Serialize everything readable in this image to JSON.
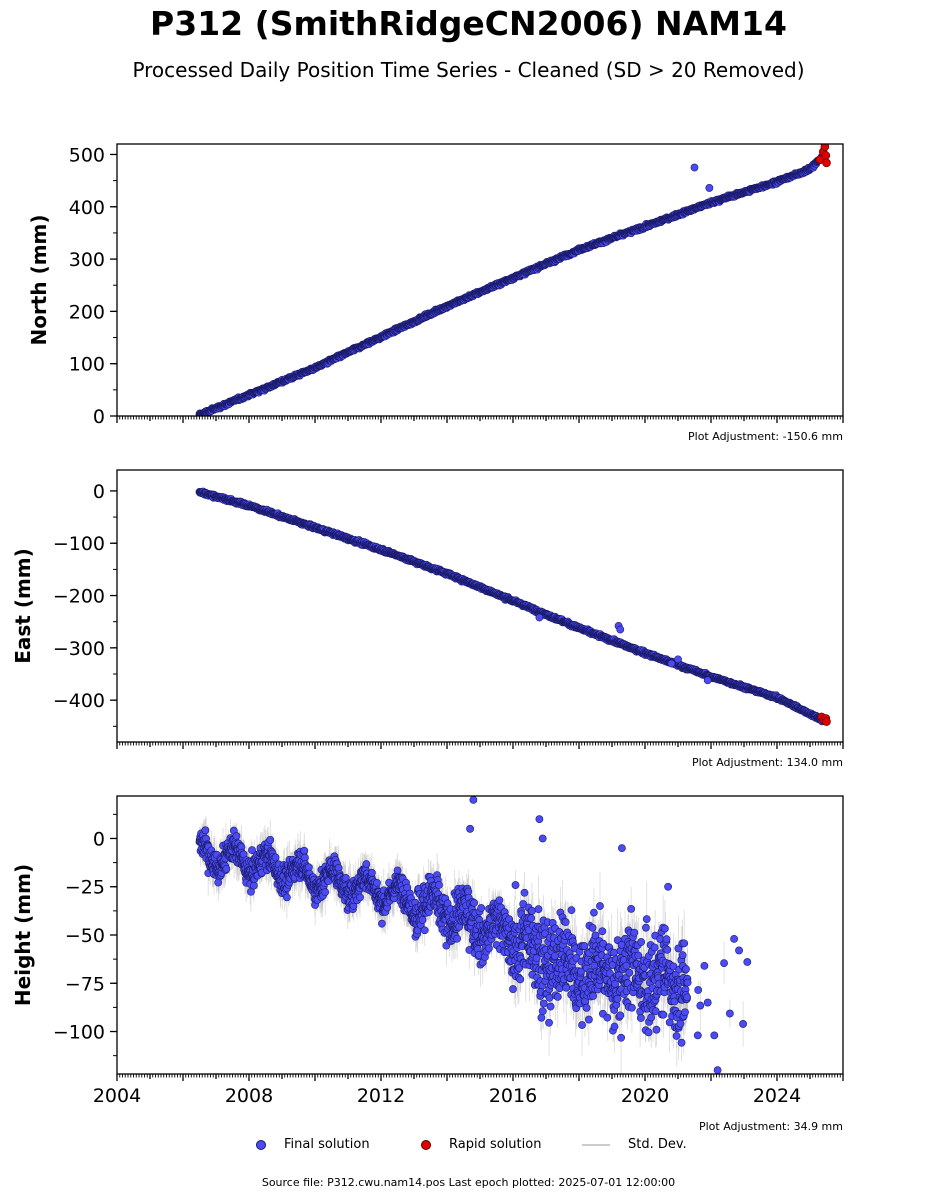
{
  "header": {
    "title": "P312 (SmithRidgeCN2006) NAM14",
    "subtitle": "Processed Daily Position Time Series - Cleaned (SD > 20 Removed)"
  },
  "legend": {
    "final": "Final solution",
    "rapid": "Rapid solution",
    "std": "Std. Dev."
  },
  "footer": {
    "source": "Source file: P312.cwu.nam14.pos  Last epoch plotted: 2025-07-01 12:00:00"
  },
  "colors": {
    "final": "#4b4bf5",
    "final_edge": "#1a1a66",
    "rapid": "#e00000",
    "std": "#bbbbbb"
  },
  "chart_data": [
    {
      "type": "scatter",
      "ylabel": "North (mm)",
      "adjustment": "Plot Adjustment: -150.6 mm",
      "xlim": [
        2004,
        2026
      ],
      "ylim": [
        0,
        520
      ],
      "yticks": [
        0,
        100,
        200,
        300,
        400,
        500
      ],
      "show_x_tick_labels": false,
      "trend": [
        [
          2006.5,
          2
        ],
        [
          2010,
          92
        ],
        [
          2014,
          210
        ],
        [
          2018,
          318
        ],
        [
          2020,
          362
        ],
        [
          2022,
          408
        ],
        [
          2024,
          448
        ],
        [
          2025.0,
          472
        ],
        [
          2025.45,
          500
        ]
      ],
      "outliers": [
        [
          2021.5,
          475
        ],
        [
          2021.95,
          436
        ]
      ],
      "rapid": [
        [
          2025.3,
          490
        ],
        [
          2025.4,
          505
        ],
        [
          2025.45,
          515
        ],
        [
          2025.48,
          498
        ],
        [
          2025.5,
          484
        ]
      ],
      "series": [
        {
          "name": "Final solution",
          "x_start": 2006.5,
          "x_end": 2025.4
        },
        {
          "name": "Rapid solution",
          "x_start": 2025.3,
          "x_end": 2025.5
        }
      ]
    },
    {
      "type": "scatter",
      "ylabel": "East (mm)",
      "adjustment": "Plot Adjustment: 134.0 mm",
      "xlim": [
        2004,
        2026
      ],
      "ylim": [
        -480,
        40
      ],
      "yticks": [
        0,
        -100,
        -200,
        -300,
        -400
      ],
      "show_x_tick_labels": false,
      "trend": [
        [
          2006.5,
          -2
        ],
        [
          2008,
          -28
        ],
        [
          2010,
          -70
        ],
        [
          2012,
          -112
        ],
        [
          2014,
          -158
        ],
        [
          2016,
          -210
        ],
        [
          2018,
          -262
        ],
        [
          2020,
          -310
        ],
        [
          2022,
          -355
        ],
        [
          2024,
          -395
        ],
        [
          2025.45,
          -440
        ]
      ],
      "outliers": [
        [
          2019.2,
          -258
        ],
        [
          2019.25,
          -265
        ],
        [
          2021.0,
          -322
        ],
        [
          2020.8,
          -330
        ],
        [
          2021.9,
          -362
        ],
        [
          2016.8,
          -242
        ]
      ],
      "rapid": [
        [
          2025.35,
          -432
        ],
        [
          2025.42,
          -438
        ],
        [
          2025.48,
          -435
        ],
        [
          2025.5,
          -441
        ]
      ],
      "series": [
        {
          "name": "Final solution",
          "x_start": 2006.5,
          "x_end": 2025.4
        },
        {
          "name": "Rapid solution",
          "x_start": 2025.35,
          "x_end": 2025.5
        }
      ]
    },
    {
      "type": "scatter",
      "ylabel": "Height (mm)",
      "adjustment": "Plot Adjustment: 34.9 mm",
      "xlim": [
        2004,
        2026
      ],
      "ylim": [
        -122,
        22
      ],
      "yticks": [
        0,
        -25,
        -50,
        -75,
        -100
      ],
      "xticks": [
        2004,
        2008,
        2012,
        2016,
        2020,
        2024
      ],
      "show_x_tick_labels": true,
      "trend": [
        [
          2006.5,
          -8
        ],
        [
          2008,
          -12
        ],
        [
          2010,
          -20
        ],
        [
          2012,
          -27
        ],
        [
          2014,
          -38
        ],
        [
          2015,
          -45
        ],
        [
          2016,
          -50
        ],
        [
          2017,
          -62
        ],
        [
          2018,
          -68
        ],
        [
          2019,
          -70
        ],
        [
          2020,
          -72
        ],
        [
          2021,
          -75
        ],
        [
          2021.2,
          -78
        ]
      ],
      "outliers": [
        [
          2014.8,
          20
        ],
        [
          2014.7,
          5
        ],
        [
          2016.8,
          10
        ],
        [
          2016.9,
          0
        ],
        [
          2019.3,
          -5
        ],
        [
          2020.7,
          -25
        ],
        [
          2022.7,
          -52
        ],
        [
          2022.85,
          -58
        ],
        [
          2023.1,
          -64
        ],
        [
          2021.8,
          -66
        ],
        [
          2021.9,
          -85
        ],
        [
          2022.1,
          -102
        ],
        [
          2022.2,
          -120
        ],
        [
          2021.6,
          -102
        ],
        [
          2016.0,
          -78
        ]
      ],
      "rapid": [],
      "series": [
        {
          "name": "Final solution",
          "x_start": 2006.5,
          "x_end": 2023.1
        }
      ]
    }
  ]
}
